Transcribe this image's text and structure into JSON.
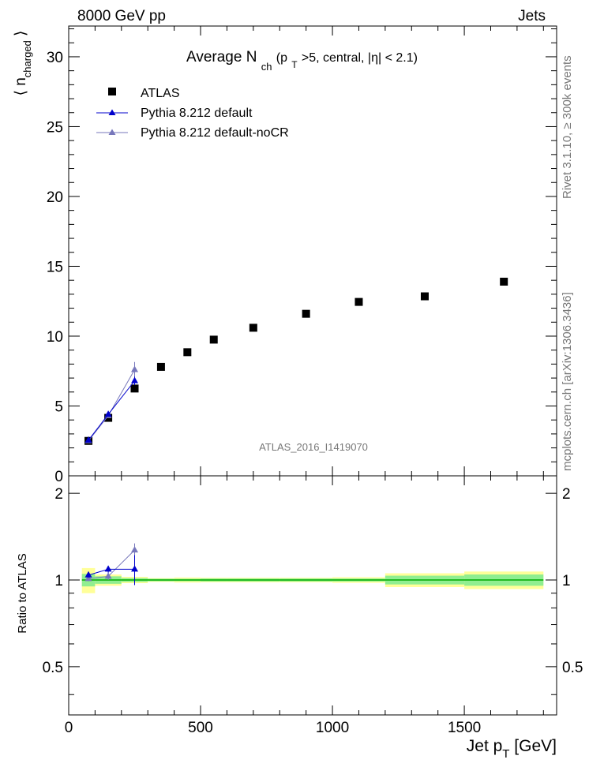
{
  "header": {
    "left": "8000 GeV pp",
    "right": "Jets"
  },
  "side_labels": {
    "rivet": "Rivet 3.1.10, ≥ 300k events",
    "mcplots": "mcplots.cern.ch [arXiv:1306.3436]"
  },
  "analysis_tag": "ATLAS_2016_I1419070",
  "colors": {
    "atlas": "#000000",
    "pythia_default": "#0000cc",
    "pythia_nocr": "#7777bb",
    "band_inner": "#90ee90",
    "band_outer": "#ffff99",
    "ref_line": "#00aa00"
  },
  "chart_data": [
    {
      "type": "scatter",
      "title": "Average N_ch (p_T>5, central, |η| < 2.1)",
      "title_parts": {
        "main": "Average N",
        "sub_ch": "ch",
        "cond_open": " (p",
        "sub_T": "T",
        "cond_rest": ">5, central, |η| < 2.1)"
      },
      "ylabel": "⟨ n_charged ⟩",
      "ylabel_parts": {
        "main": "n",
        "sub": "charged"
      },
      "xlim": [
        0,
        1850
      ],
      "ylim": [
        0,
        32.2
      ],
      "yticks": [
        0,
        5,
        10,
        15,
        20,
        25,
        30
      ],
      "series": [
        {
          "name": "ATLAS",
          "marker": "square",
          "x": [
            75,
            150,
            250,
            350,
            450,
            550,
            700,
            900,
            1100,
            1350,
            1650
          ],
          "y": [
            2.5,
            4.15,
            6.25,
            7.8,
            8.85,
            9.75,
            10.6,
            11.6,
            12.45,
            12.85,
            13.9
          ]
        },
        {
          "name": "Pythia 8.212 default",
          "marker": "triangle",
          "x": [
            75,
            150,
            250
          ],
          "y": [
            2.55,
            4.4,
            6.8
          ],
          "yerr": [
            0.05,
            0.08,
            0.3
          ]
        },
        {
          "name": "Pythia 8.212 default-noCR",
          "marker": "triangle",
          "x": [
            75,
            150,
            250
          ],
          "y": [
            2.5,
            4.3,
            7.6
          ],
          "yerr": [
            0.05,
            0.1,
            0.55
          ]
        }
      ]
    },
    {
      "type": "scatter",
      "title": "",
      "xlabel": "Jet p_T [GeV]",
      "xlabel_parts": {
        "main": "Jet p",
        "sub": "T",
        "unit": " [GeV]"
      },
      "ylabel": "Ratio to ATLAS",
      "xlim": [
        0,
        1850
      ],
      "ylim": [
        0.34,
        2.3
      ],
      "yticks": [
        0.5,
        1,
        2
      ],
      "ytick_labels": [
        "0.5",
        "1",
        "2"
      ],
      "xticks": [
        0,
        500,
        1000,
        1500
      ],
      "xtick_labels": [
        "0",
        "500",
        "1000",
        "1500"
      ],
      "bands": {
        "edges": [
          50,
          100,
          200,
          300,
          400,
          500,
          600,
          800,
          1000,
          1200,
          1500,
          1800
        ],
        "inner": [
          0.05,
          0.03,
          0.015,
          0.01,
          0.01,
          0.012,
          0.012,
          0.012,
          0.012,
          0.035,
          0.045
        ],
        "outer": [
          0.1,
          0.045,
          0.025,
          0.015,
          0.02,
          0.018,
          0.018,
          0.018,
          0.022,
          0.055,
          0.07
        ]
      },
      "series": [
        {
          "name": "Pythia 8.212 default",
          "x": [
            75,
            150,
            250
          ],
          "y": [
            1.04,
            1.09,
            1.09
          ],
          "yerr": [
            0.02,
            0.03,
            0.13
          ]
        },
        {
          "name": "Pythia 8.212 default-noCR",
          "x": [
            75,
            150,
            250
          ],
          "y": [
            1.01,
            1.03,
            1.27
          ],
          "yerr": [
            0.02,
            0.03,
            0.07
          ]
        }
      ]
    }
  ]
}
